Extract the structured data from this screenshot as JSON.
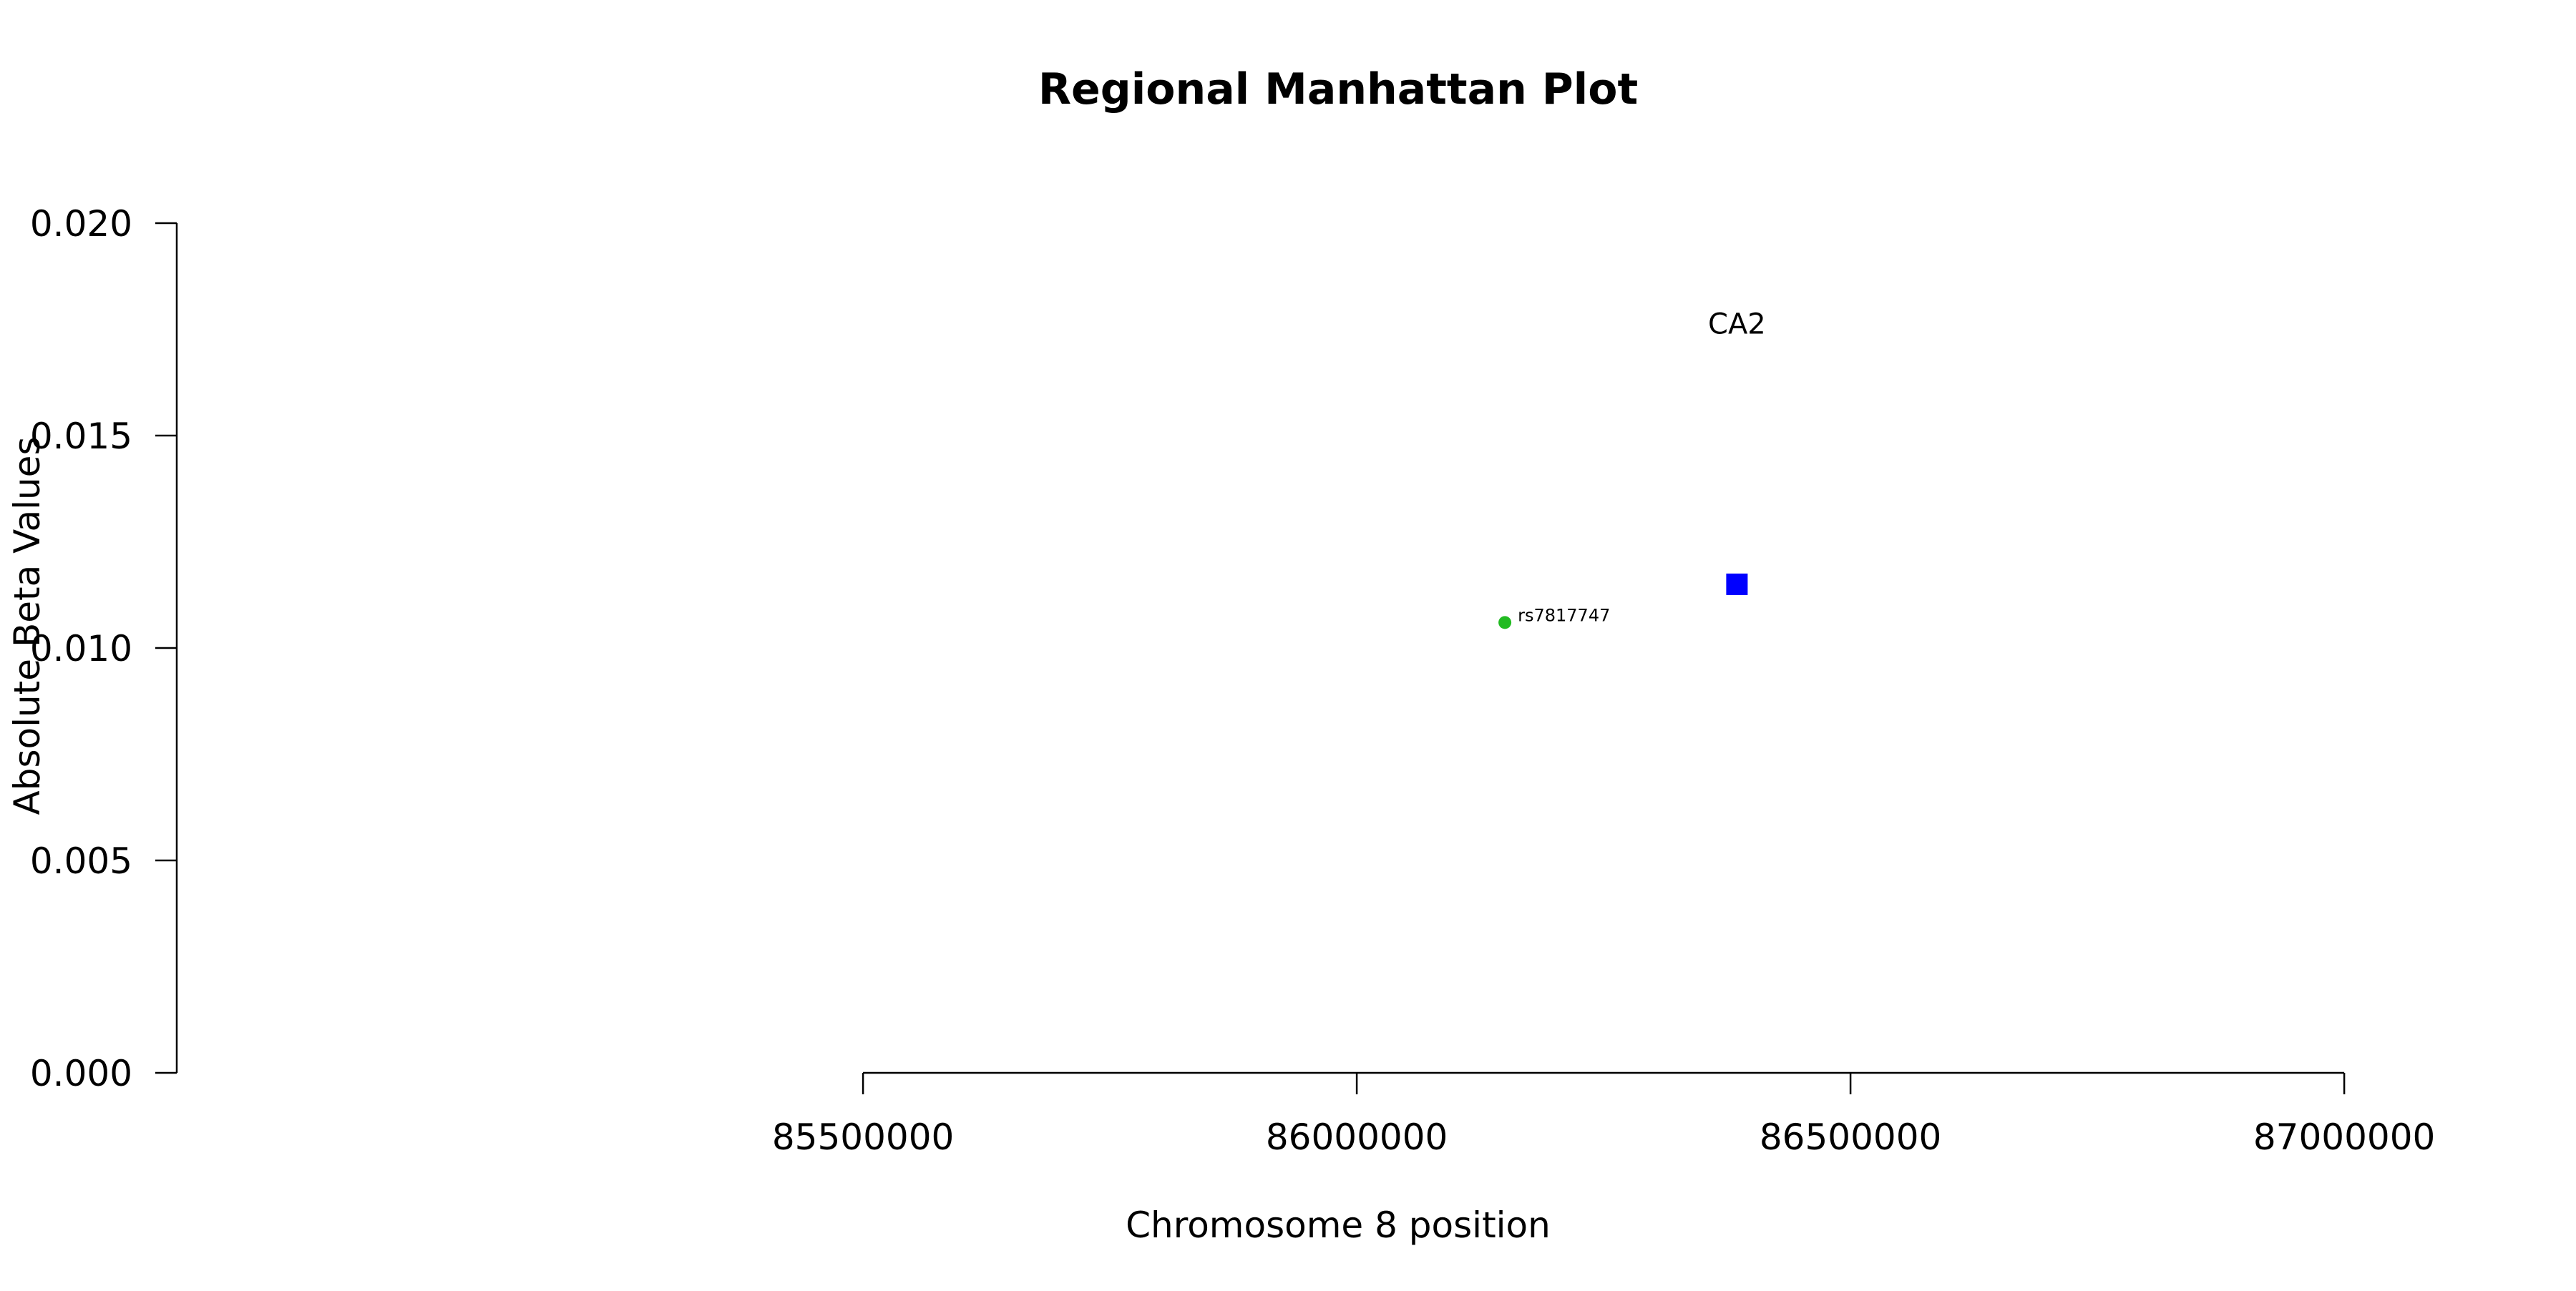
{
  "chart_data": {
    "type": "scatter",
    "title": "Regional Manhattan Plot",
    "xlabel": "Chromosome 8 position",
    "ylabel": "Absolute Beta Values",
    "xlim": [
      84805000,
      87155000
    ],
    "ylim": [
      0.0,
      0.02
    ],
    "x_ticks": [
      85500000,
      86000000,
      86500000,
      87000000
    ],
    "y_ticks": [
      0.0,
      0.005,
      0.01,
      0.015,
      0.02
    ],
    "x_tick_labels": [
      "85500000",
      "86000000",
      "86500000",
      "87000000"
    ],
    "y_tick_labels": [
      "0.000",
      "0.005",
      "0.010",
      "0.015",
      "0.020"
    ],
    "points": [
      {
        "label": "rs7817747",
        "x": 86150000,
        "y": 0.0106,
        "shape": "circle",
        "color": "#22bb22"
      },
      {
        "label": "",
        "x": 86385000,
        "y": 0.0115,
        "shape": "square",
        "color": "#0000ff"
      }
    ],
    "annotations": [
      {
        "text": "CA2",
        "x": 86385000,
        "y": 0.0174
      }
    ],
    "grid": false,
    "legend": "none"
  }
}
